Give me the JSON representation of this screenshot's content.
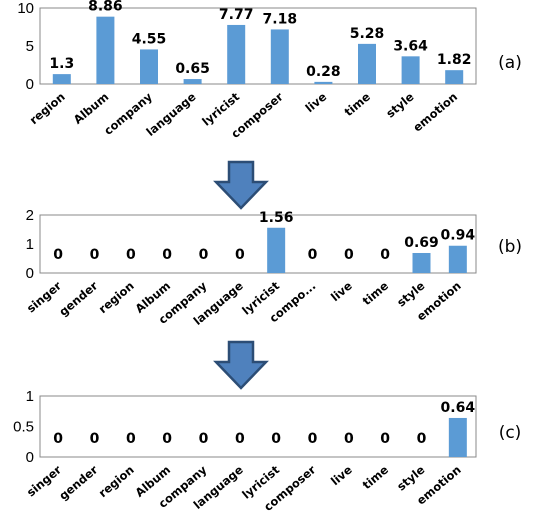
{
  "chart_data": [
    {
      "type": "bar",
      "panel_label": "(a)",
      "categories": [
        "region",
        "Album",
        "company",
        "language",
        "lyricist",
        "composer",
        "live",
        "time",
        "style",
        "emotion"
      ],
      "values": [
        1.3,
        8.86,
        4.55,
        0.65,
        7.77,
        7.18,
        0.28,
        5.28,
        3.64,
        1.82
      ],
      "data_labels": [
        "1.3",
        "8.86",
        "4.55",
        "0.65",
        "7.77",
        "7.18",
        "0.28",
        "5.28",
        "3.64",
        "1.82"
      ],
      "yticks": [
        "0",
        "5",
        "10"
      ],
      "ylim": [
        0,
        10
      ],
      "color": "#5b9bd5",
      "grid": false
    },
    {
      "type": "bar",
      "panel_label": "(b)",
      "categories": [
        "singer",
        "gender",
        "region",
        "Album",
        "company",
        "language",
        "lyricist",
        "compo...",
        "live",
        "time",
        "style",
        "emotion"
      ],
      "values": [
        0,
        0,
        0,
        0,
        0,
        0,
        1.56,
        0,
        0,
        0,
        0.69,
        0.94
      ],
      "data_labels": [
        "0",
        "0",
        "0",
        "0",
        "0",
        "0",
        "1.56",
        "0",
        "0",
        "0",
        "0.69",
        "0.94"
      ],
      "yticks": [
        "0",
        "1",
        "2"
      ],
      "ylim": [
        0,
        2
      ],
      "color": "#5b9bd5",
      "grid": false
    },
    {
      "type": "bar",
      "panel_label": "(c)",
      "categories": [
        "singer",
        "gender",
        "region",
        "Album",
        "company",
        "language",
        "lyricist",
        "composer",
        "live",
        "time",
        "style",
        "emotion"
      ],
      "values": [
        0,
        0,
        0,
        0,
        0,
        0,
        0,
        0,
        0,
        0,
        0,
        0.64
      ],
      "data_labels": [
        "0",
        "0",
        "0",
        "0",
        "0",
        "0",
        "0",
        "0",
        "0",
        "0",
        "0",
        "0.64"
      ],
      "yticks": [
        "0",
        "0.5",
        "1"
      ],
      "ylim": [
        0,
        1
      ],
      "color": "#5b9bd5",
      "grid": false
    }
  ],
  "arrows": [
    {
      "color": "#4f81bd",
      "border": "#2c4d75"
    },
    {
      "color": "#4f81bd",
      "border": "#2c4d75"
    }
  ]
}
